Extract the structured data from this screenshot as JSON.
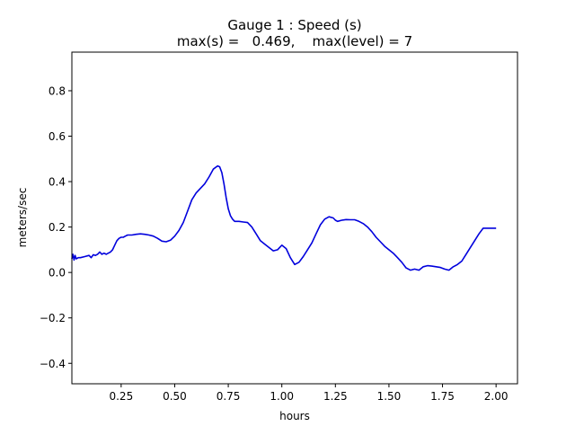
{
  "chart_data": {
    "type": "line",
    "title_line1": "Gauge 1 : Speed (s)",
    "title_line2": "max(s) =   0.469,    max(level) = 7",
    "xlabel": "hours",
    "ylabel": "meters/sec",
    "xlim": [
      0.02,
      2.1
    ],
    "ylim": [
      -0.49,
      0.97
    ],
    "xticks": [
      0.25,
      0.5,
      0.75,
      1.0,
      1.25,
      1.5,
      1.75,
      2.0
    ],
    "xtick_labels": [
      "0.25",
      "0.50",
      "0.75",
      "1.00",
      "1.25",
      "1.50",
      "1.75",
      "2.00"
    ],
    "yticks": [
      -0.4,
      -0.2,
      0.0,
      0.2,
      0.4,
      0.6,
      0.8
    ],
    "ytick_labels": [
      "−0.4",
      "−0.2",
      "0.0",
      "0.2",
      "0.4",
      "0.6",
      "0.8"
    ],
    "grid": false,
    "legend": "none",
    "series": [
      {
        "color": "#0000dd",
        "x": [
          0.02,
          0.025,
          0.03,
          0.035,
          0.04,
          0.05,
          0.06,
          0.08,
          0.1,
          0.11,
          0.12,
          0.13,
          0.14,
          0.15,
          0.16,
          0.17,
          0.18,
          0.19,
          0.2,
          0.21,
          0.22,
          0.23,
          0.24,
          0.25,
          0.26,
          0.27,
          0.28,
          0.29,
          0.3,
          0.32,
          0.34,
          0.36,
          0.38,
          0.4,
          0.42,
          0.44,
          0.46,
          0.48,
          0.5,
          0.52,
          0.54,
          0.56,
          0.58,
          0.6,
          0.62,
          0.64,
          0.66,
          0.68,
          0.7,
          0.71,
          0.72,
          0.73,
          0.74,
          0.75,
          0.76,
          0.77,
          0.78,
          0.79,
          0.8,
          0.82,
          0.84,
          0.86,
          0.88,
          0.9,
          0.92,
          0.94,
          0.96,
          0.98,
          1.0,
          1.02,
          1.04,
          1.06,
          1.08,
          1.1,
          1.12,
          1.14,
          1.16,
          1.18,
          1.2,
          1.22,
          1.24,
          1.25,
          1.26,
          1.28,
          1.3,
          1.32,
          1.34,
          1.36,
          1.38,
          1.4,
          1.42,
          1.44,
          1.46,
          1.48,
          1.5,
          1.52,
          1.54,
          1.56,
          1.58,
          1.6,
          1.62,
          1.64,
          1.66,
          1.68,
          1.7,
          1.72,
          1.74,
          1.76,
          1.78,
          1.8,
          1.82,
          1.84,
          1.86,
          1.88,
          1.9,
          1.92,
          1.94,
          1.96,
          1.98,
          2.0
        ],
        "y": [
          0.06,
          0.08,
          0.055,
          0.075,
          0.06,
          0.065,
          0.065,
          0.07,
          0.075,
          0.065,
          0.078,
          0.075,
          0.08,
          0.09,
          0.08,
          0.085,
          0.08,
          0.085,
          0.09,
          0.1,
          0.12,
          0.14,
          0.15,
          0.155,
          0.155,
          0.16,
          0.165,
          0.165,
          0.165,
          0.168,
          0.17,
          0.168,
          0.165,
          0.16,
          0.15,
          0.138,
          0.135,
          0.142,
          0.16,
          0.185,
          0.22,
          0.27,
          0.32,
          0.35,
          0.37,
          0.39,
          0.42,
          0.455,
          0.469,
          0.465,
          0.44,
          0.39,
          0.33,
          0.28,
          0.25,
          0.235,
          0.225,
          0.225,
          0.225,
          0.222,
          0.22,
          0.2,
          0.17,
          0.14,
          0.125,
          0.11,
          0.095,
          0.1,
          0.12,
          0.105,
          0.065,
          0.035,
          0.045,
          0.07,
          0.1,
          0.13,
          0.17,
          0.21,
          0.235,
          0.245,
          0.24,
          0.23,
          0.225,
          0.23,
          0.233,
          0.232,
          0.232,
          0.225,
          0.215,
          0.2,
          0.18,
          0.155,
          0.135,
          0.115,
          0.1,
          0.085,
          0.065,
          0.045,
          0.02,
          0.01,
          0.015,
          0.01,
          0.025,
          0.03,
          0.028,
          0.025,
          0.022,
          0.015,
          0.01,
          0.025,
          0.035,
          0.05,
          0.08,
          0.11,
          0.14,
          0.17,
          0.195,
          0.195,
          0.195,
          0.195
        ]
      }
    ]
  }
}
